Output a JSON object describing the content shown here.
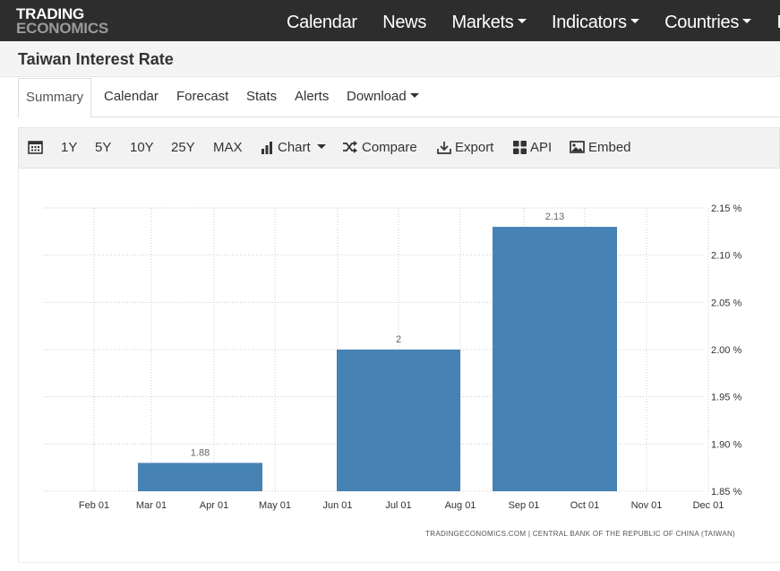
{
  "header": {
    "logo_line1": "TRADING",
    "logo_line2": "ECONOMICS",
    "nav": [
      {
        "label": "Calendar",
        "dropdown": false
      },
      {
        "label": "News",
        "dropdown": false
      },
      {
        "label": "Markets",
        "dropdown": true
      },
      {
        "label": "Indicators",
        "dropdown": true
      },
      {
        "label": "Countries",
        "dropdown": true
      },
      {
        "label": "F",
        "dropdown": false
      }
    ]
  },
  "page": {
    "title": "Taiwan Interest Rate"
  },
  "tabs": [
    {
      "label": "Summary",
      "active": true
    },
    {
      "label": "Calendar"
    },
    {
      "label": "Forecast"
    },
    {
      "label": "Stats"
    },
    {
      "label": "Alerts"
    },
    {
      "label": "Download",
      "dropdown": true
    }
  ],
  "toolbar": {
    "calendar_icon": "calendar-icon",
    "ranges": [
      "1Y",
      "5Y",
      "10Y",
      "25Y",
      "MAX"
    ],
    "chart_label": "Chart",
    "compare_label": "Compare",
    "export_label": "Export",
    "api_label": "API",
    "embed_label": "Embed"
  },
  "colors": {
    "bar": "#4682b4",
    "topbar": "#2d2d2d",
    "grid": "#cccccc"
  },
  "chart_data": {
    "type": "bar",
    "categories": [
      "Mar",
      "Jun",
      "Sep"
    ],
    "values": [
      1.88,
      2.0,
      2.13
    ],
    "data_labels": [
      "1.88",
      "2",
      "2.13"
    ],
    "x_ticks": [
      "Feb 01",
      "Mar 01",
      "Apr 01",
      "May 01",
      "Jun 01",
      "Jul 01",
      "Aug 01",
      "Sep 01",
      "Oct 01",
      "Nov 01",
      "Dec 01"
    ],
    "y_ticks": [
      "1.85 %",
      "1.90 %",
      "1.95 %",
      "2.00 %",
      "2.05 %",
      "2.10 %",
      "2.15 %"
    ],
    "ylim": [
      1.85,
      2.15
    ],
    "grid": true,
    "source": "TRADINGECONOMICS.COM  |  CENTRAL BANK OF THE REPUBLIC OF CHINA (TAIWAN)"
  }
}
